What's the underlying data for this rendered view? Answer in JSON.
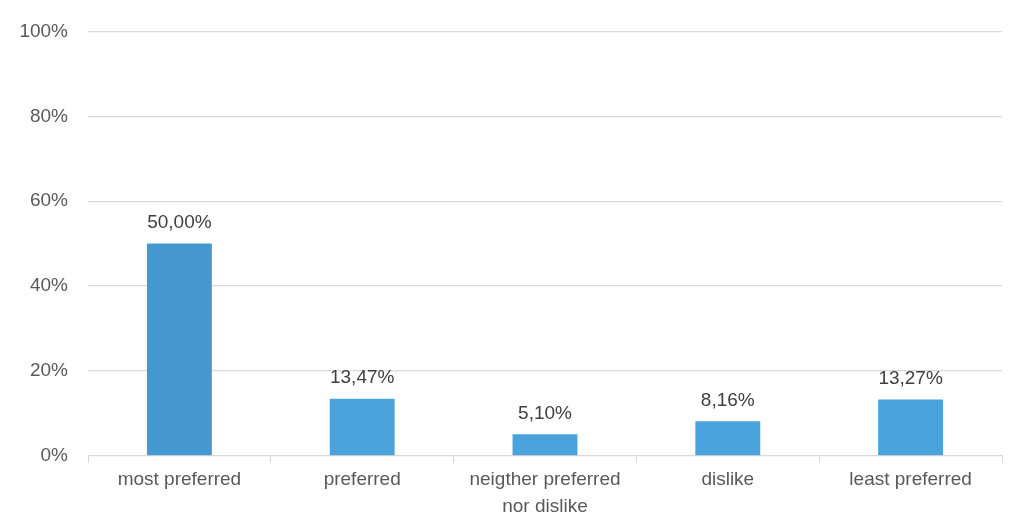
{
  "chart_data": {
    "type": "bar",
    "categories": [
      "most preferred",
      "preferred",
      "neigther preferred nor dislike",
      "dislike",
      "least preferred"
    ],
    "values": [
      50.0,
      13.47,
      5.1,
      8.16,
      13.27
    ],
    "value_labels": [
      "50,00%",
      "13,47%",
      "5,10%",
      "8,16%",
      "13,27%"
    ],
    "colors": [
      "#4598cf",
      "#4aa3dd",
      "#4aa3dd",
      "#4aa3dd",
      "#4aa3dd"
    ],
    "ylim": [
      0,
      100
    ],
    "yticks": [
      {
        "value": 0,
        "label": "0%"
      },
      {
        "value": 20,
        "label": "20%"
      },
      {
        "value": 40,
        "label": "40%"
      },
      {
        "value": 60,
        "label": "60%"
      },
      {
        "value": 80,
        "label": "80%"
      },
      {
        "value": 100,
        "label": "100%"
      }
    ],
    "grid": "y"
  }
}
